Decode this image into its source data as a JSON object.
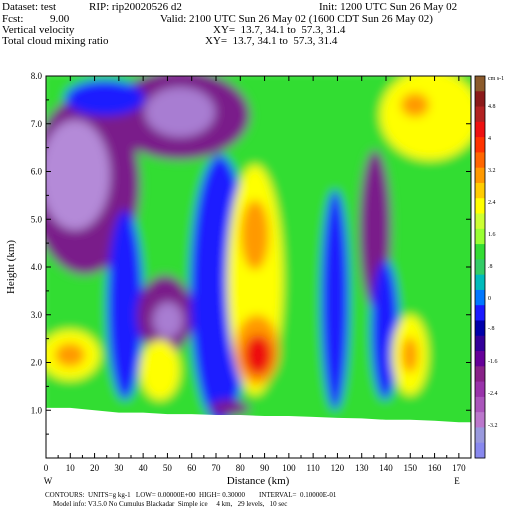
{
  "header": {
    "dataset": "Dataset: test",
    "rip": "RIP: rip20020526 d2",
    "init": "Init: 1200 UTC Sun 26 May 02",
    "fcst_label": "Fcst:",
    "fcst_value": "9.00",
    "valid": "Valid: 2100 UTC Sun 26 May 02 (1600 CDT Sun 26 May 02)",
    "field1": "Vertical velocity",
    "field1_xy": "XY=  13.7, 34.1 to  57.3, 31.4",
    "field2": "Total cloud mixing ratio",
    "field2_xy": "XY=  13.7, 34.1 to  57.3, 31.4"
  },
  "footer": {
    "contours": "CONTOURS:  UNITS=g kg-1   LOW= 0.00000E+00  HIGH= 0.30000        INTERVAL=  0.10000E-01",
    "model_info": "Model info: V3.5.0 No Cumulus Blackadar  Simple ice     4 km,   29 levels,   10 sec"
  },
  "colors": {
    "blue": "#1a1aff",
    "green": "#33dd33",
    "yellow": "#ffff00",
    "orange": "#ff9900",
    "red": "#ee1111",
    "purple": "#882288",
    "lavender": "#9966cc",
    "terrain": "#ffffff"
  },
  "chart_data": {
    "type": "heatmap",
    "xlabel": "Distance (km)",
    "ylabel": "Height (km)",
    "xlim": [
      0,
      175
    ],
    "ylim": [
      0,
      8
    ],
    "x_ticks": [
      "0",
      "10",
      "20",
      "30",
      "40",
      "50",
      "60",
      "70",
      "80",
      "90",
      "100",
      "110",
      "120",
      "130",
      "140",
      "150",
      "160",
      "170"
    ],
    "y_ticks": [
      "1.0",
      "2.0",
      "3.0",
      "4.0",
      "5.0",
      "6.0",
      "7.0",
      "8.0"
    ],
    "x_end_labels": {
      "left": "W",
      "right": "E"
    },
    "colorbar": {
      "unit": "cm s-1",
      "labels": [
        "4.8",
        "4",
        "3.2",
        "2.4",
        "1.6",
        ".8",
        "0",
        "-.8",
        "-1.6",
        "-2.4",
        "-3.2"
      ]
    },
    "terrain_height_km": [
      [
        0,
        1.05
      ],
      [
        10,
        1.05
      ],
      [
        20,
        1.0
      ],
      [
        30,
        0.95
      ],
      [
        40,
        0.95
      ],
      [
        50,
        0.92
      ],
      [
        60,
        0.92
      ],
      [
        70,
        0.9
      ],
      [
        80,
        0.9
      ],
      [
        90,
        0.88
      ],
      [
        100,
        0.88
      ],
      [
        110,
        0.86
      ],
      [
        120,
        0.84
      ],
      [
        130,
        0.83
      ],
      [
        140,
        0.8
      ],
      [
        150,
        0.8
      ],
      [
        160,
        0.78
      ],
      [
        170,
        0.75
      ],
      [
        175,
        0.75
      ]
    ]
  }
}
